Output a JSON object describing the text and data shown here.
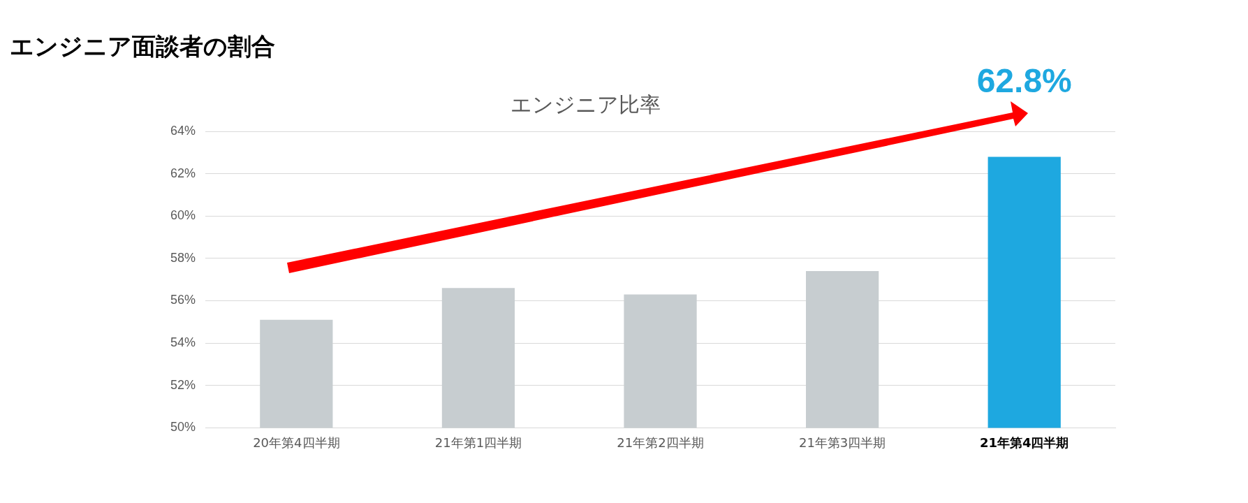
{
  "chart_data": {
    "type": "bar",
    "title": "エンジニア面談者の割合",
    "subtitle": "エンジニア比率",
    "categories": [
      "20年第4四半期",
      "21年第1四半期",
      "21年第2四半期",
      "21年第3四半期",
      "21年第4四半期"
    ],
    "values": [
      55.1,
      56.6,
      56.3,
      57.4,
      62.8
    ],
    "colors": [
      "#c7cdd0",
      "#c7cdd0",
      "#c7cdd0",
      "#c7cdd0",
      "#1ea8e0"
    ],
    "value_labels": [
      null,
      null,
      null,
      null,
      "62.8%"
    ],
    "ylim": [
      50,
      64
    ],
    "yticks": [
      {
        "value": 50,
        "label": "50%"
      },
      {
        "value": 52,
        "label": "52%"
      },
      {
        "value": 54,
        "label": "54%"
      },
      {
        "value": 56,
        "label": "56%"
      },
      {
        "value": 58,
        "label": "58%"
      },
      {
        "value": 60,
        "label": "60%"
      },
      {
        "value": 62,
        "label": "62%"
      },
      {
        "value": 64,
        "label": "64%"
      }
    ],
    "grid": "y",
    "legend": false
  }
}
